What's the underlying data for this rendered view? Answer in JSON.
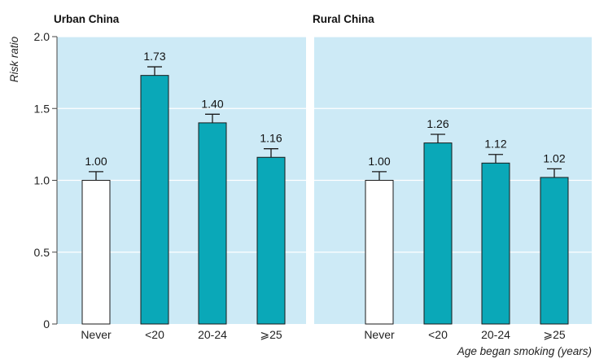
{
  "chart_data": {
    "type": "bar",
    "ylabel": "Risk ratio",
    "xlabel": "Age began smoking (years)",
    "ylim": [
      0,
      2.0
    ],
    "yticks": [
      "0",
      "0.5",
      "1.0",
      "1.5",
      "2.0"
    ],
    "grid": true,
    "colors": {
      "plot_bg": "#cdeaf6",
      "grid": "#ffffff",
      "bar_fill": "#0aa8b8",
      "reference_fill": "#ffffff",
      "bar_stroke": "#1a1a1a"
    },
    "panels": [
      {
        "title": "Urban China",
        "categories": [
          "Never",
          "<20",
          "20-24",
          "⩾25"
        ],
        "values": [
          1.0,
          1.73,
          1.4,
          1.16
        ],
        "value_labels": [
          "1.00",
          "1.73",
          "1.40",
          "1.16"
        ],
        "error_upper": [
          1.06,
          1.79,
          1.46,
          1.22
        ]
      },
      {
        "title": "Rural China",
        "categories": [
          "Never",
          "<20",
          "20-24",
          "⩾25"
        ],
        "values": [
          1.0,
          1.26,
          1.12,
          1.02
        ],
        "value_labels": [
          "1.00",
          "1.26",
          "1.12",
          "1.02"
        ],
        "error_upper": [
          1.06,
          1.32,
          1.18,
          1.08
        ]
      }
    ]
  }
}
